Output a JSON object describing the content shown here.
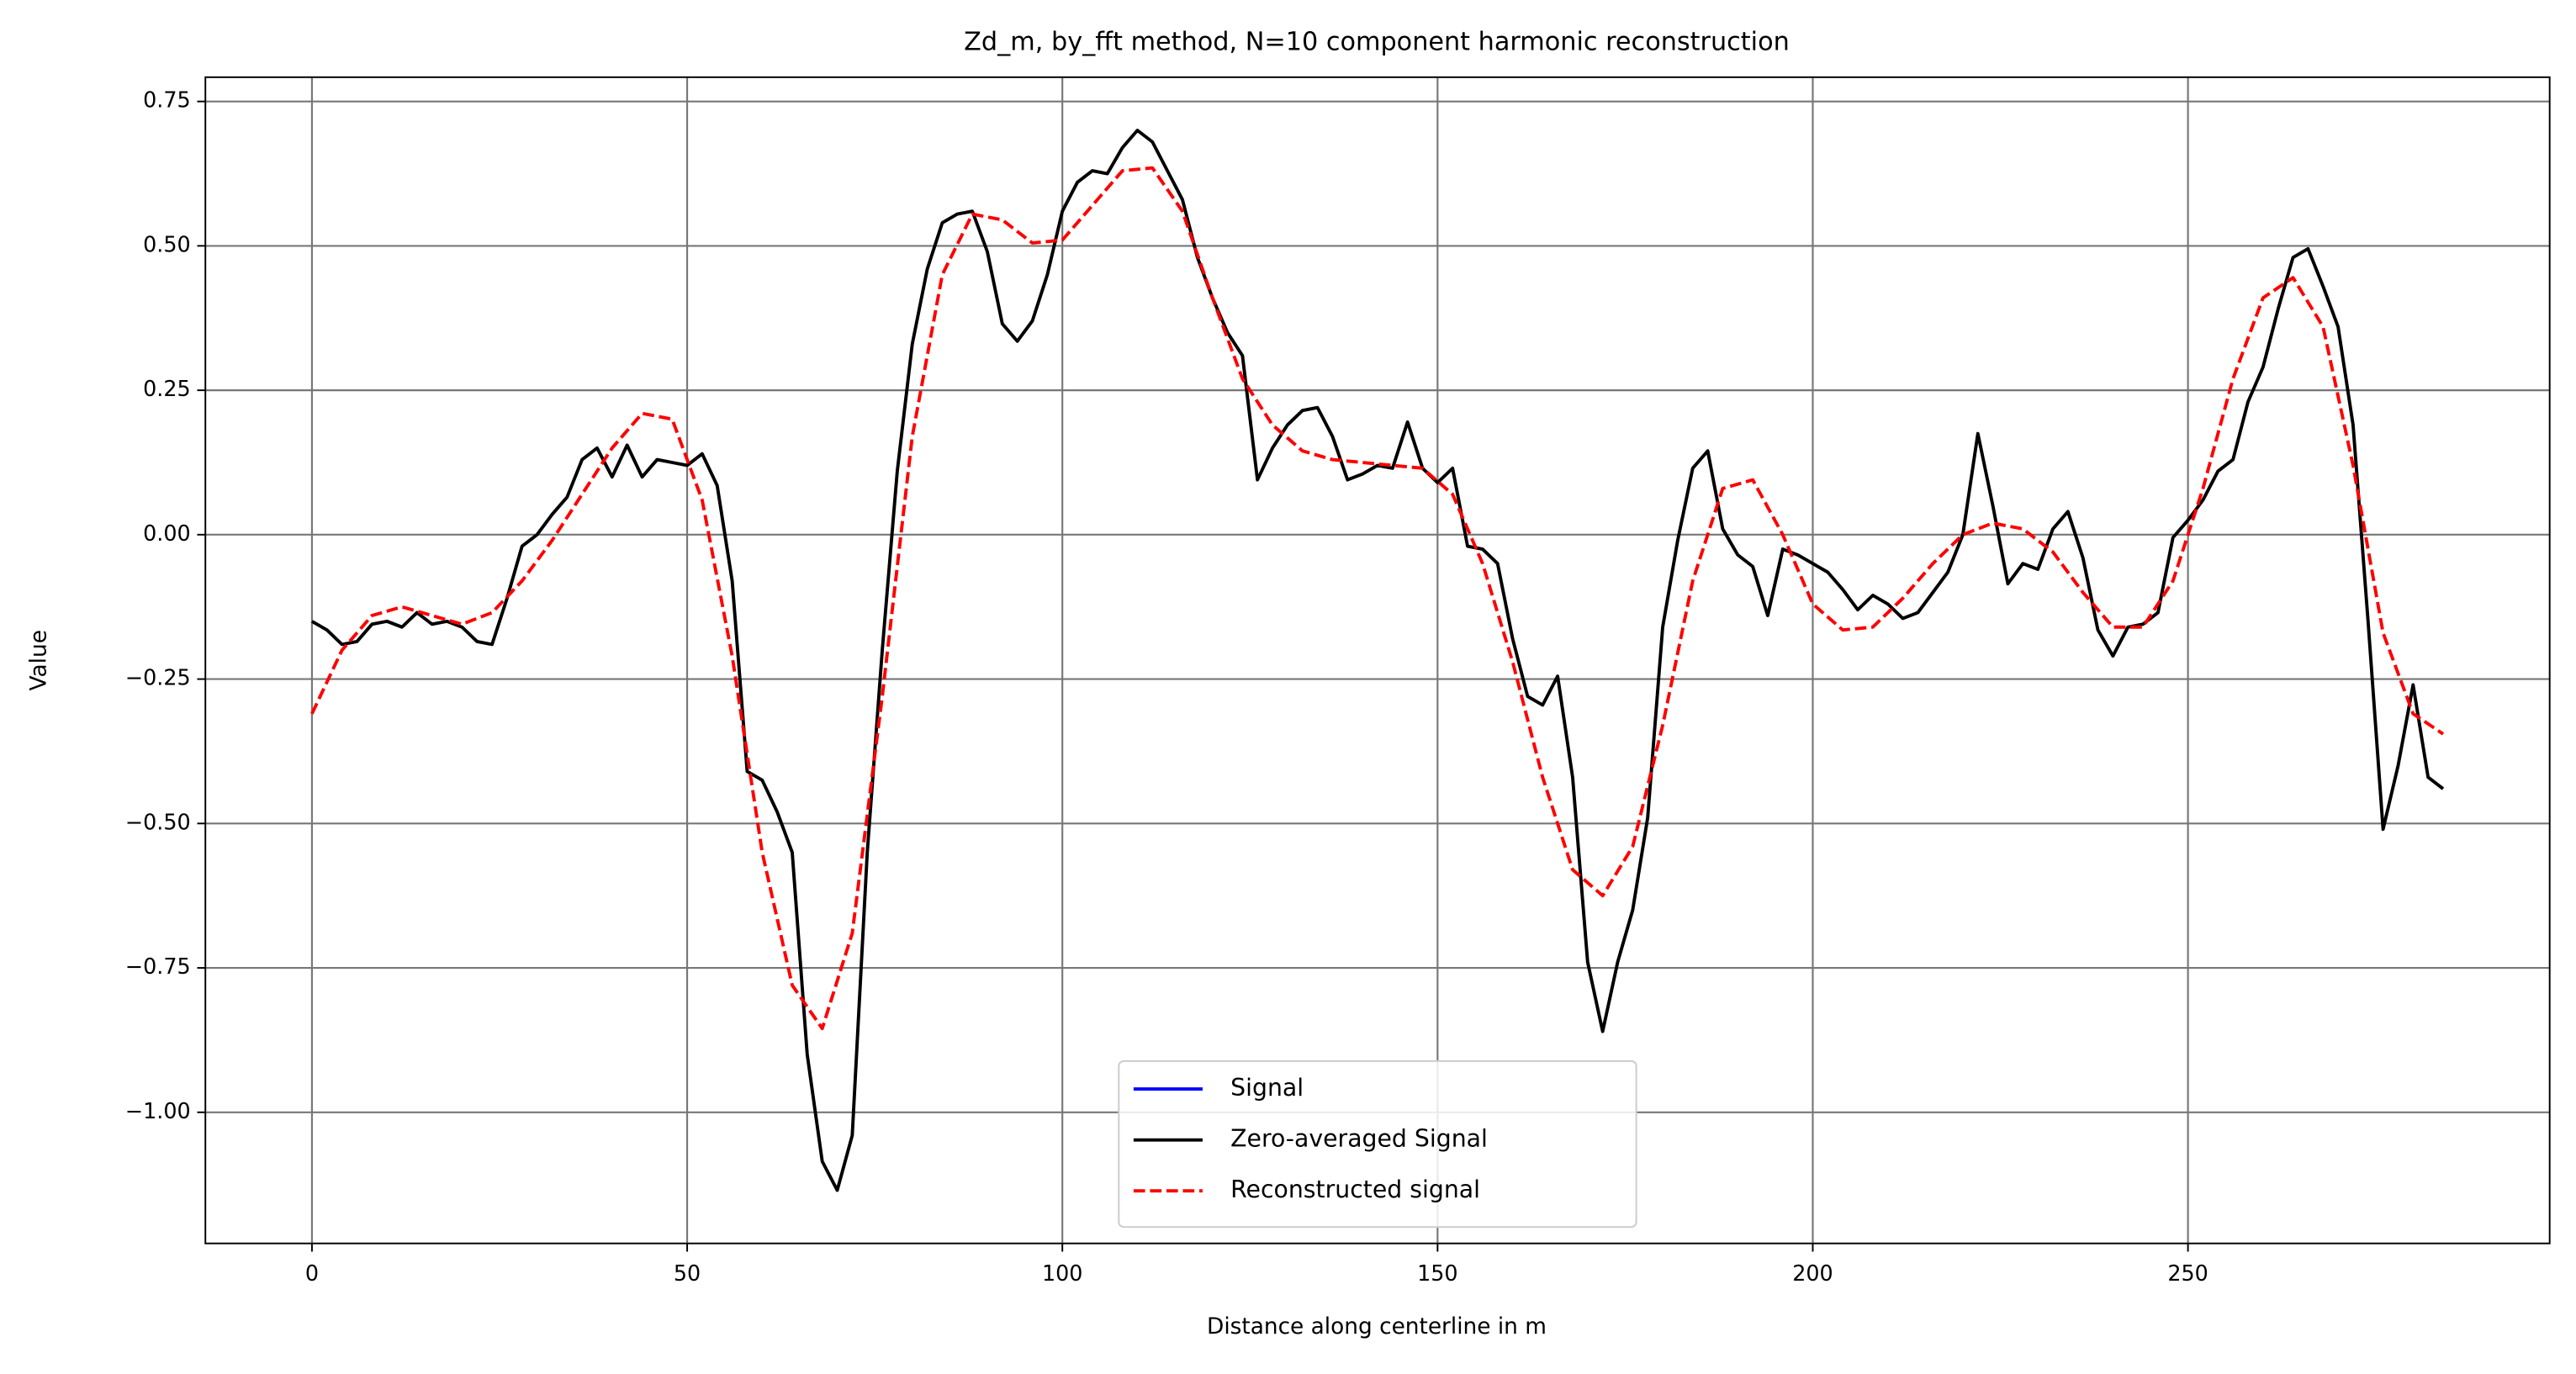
{
  "chart_data": {
    "type": "line",
    "title": "Zd_m, by_fft method, N=10 component harmonic reconstruction",
    "xlabel": "Distance along centerline in m",
    "ylabel": "Value",
    "xlim": [
      -14.2,
      298.2
    ],
    "ylim": [
      -1.227,
      0.792
    ],
    "xticks": [
      0,
      50,
      100,
      150,
      200,
      250
    ],
    "yticks": [
      {
        "value": 0.75,
        "label": "0.75"
      },
      {
        "value": 0.5,
        "label": "0.50"
      },
      {
        "value": 0.25,
        "label": "0.25"
      },
      {
        "value": 0,
        "label": "0.00"
      },
      {
        "value": -0.25,
        "label": "−0.25"
      },
      {
        "value": -0.5,
        "label": "−0.50"
      },
      {
        "value": -0.75,
        "label": "−0.75"
      },
      {
        "value": -1,
        "label": "−1.00"
      }
    ],
    "grid": true,
    "legend": "lower center",
    "series": [
      {
        "name": "Signal",
        "color": "#0000ff",
        "style": "solid"
      },
      {
        "name": "Zero-averaged Signal",
        "color": "#000000",
        "style": "solid",
        "x": [
          0,
          2,
          4,
          6,
          8,
          10,
          12,
          14,
          16,
          18,
          20,
          22,
          24,
          26,
          28,
          30,
          32,
          34,
          36,
          38,
          40,
          42,
          44,
          46,
          48,
          50,
          52,
          54,
          56,
          58,
          60,
          62,
          64,
          66,
          68,
          70,
          72,
          74,
          76,
          78,
          80,
          82,
          84,
          86,
          88,
          90,
          92,
          94,
          96,
          98,
          100,
          102,
          104,
          106,
          108,
          110,
          112,
          114,
          116,
          118,
          120,
          122,
          124,
          126,
          128,
          130,
          132,
          134,
          136,
          138,
          140,
          142,
          144,
          146,
          148,
          150,
          152,
          154,
          156,
          158,
          160,
          162,
          164,
          166,
          168,
          170,
          172,
          174,
          176,
          178,
          180,
          182,
          184,
          186,
          188,
          190,
          192,
          194,
          196,
          198,
          200,
          202,
          204,
          206,
          208,
          210,
          212,
          214,
          216,
          218,
          220,
          222,
          224,
          226,
          228,
          230,
          232,
          234,
          236,
          238,
          240,
          242,
          244,
          246,
          248,
          250,
          252,
          254,
          256,
          258,
          260,
          262,
          264,
          266,
          268,
          270,
          272,
          274,
          276,
          278,
          280,
          282,
          284
        ],
        "values": [
          -0.15,
          -0.165,
          -0.19,
          -0.185,
          -0.155,
          -0.15,
          -0.16,
          -0.135,
          -0.155,
          -0.15,
          -0.16,
          -0.185,
          -0.19,
          -0.11,
          -0.02,
          0.0,
          0.035,
          0.065,
          0.13,
          0.15,
          0.1,
          0.155,
          0.1,
          0.13,
          0.125,
          0.12,
          0.14,
          0.085,
          -0.08,
          -0.41,
          -0.425,
          -0.48,
          -0.55,
          -0.9,
          -1.085,
          -1.135,
          -1.04,
          -0.55,
          -0.2,
          0.11,
          0.33,
          0.46,
          0.54,
          0.555,
          0.56,
          0.49,
          0.365,
          0.335,
          0.37,
          0.45,
          0.56,
          0.61,
          0.63,
          0.625,
          0.67,
          0.7,
          0.68,
          0.63,
          0.58,
          0.48,
          0.41,
          0.35,
          0.31,
          0.095,
          0.15,
          0.19,
          0.215,
          0.22,
          0.17,
          0.095,
          0.105,
          0.12,
          0.115,
          0.195,
          0.115,
          0.09,
          0.115,
          -0.02,
          -0.025,
          -0.05,
          -0.18,
          -0.28,
          -0.295,
          -0.245,
          -0.42,
          -0.74,
          -0.86,
          -0.74,
          -0.65,
          -0.49,
          -0.16,
          -0.01,
          0.115,
          0.145,
          0.01,
          -0.035,
          -0.055,
          -0.14,
          -0.025,
          -0.035,
          -0.05,
          -0.065,
          -0.095,
          -0.13,
          -0.105,
          -0.12,
          -0.145,
          -0.135,
          -0.1,
          -0.065,
          0.0,
          0.175,
          0.05,
          -0.085,
          -0.05,
          -0.06,
          0.01,
          0.04,
          -0.04,
          -0.165,
          -0.21,
          -0.16,
          -0.155,
          -0.135,
          -0.005,
          0.025,
          0.06,
          0.11,
          0.13,
          0.23,
          0.29,
          0.39,
          0.48,
          0.495,
          0.43,
          0.36,
          0.19,
          -0.15,
          -0.51,
          -0.4,
          -0.26,
          -0.42,
          -0.44
        ]
      },
      {
        "name": "Reconstructed signal",
        "color": "#ff0000",
        "style": "dashed",
        "x": [
          0,
          4,
          8,
          12,
          16,
          20,
          24,
          28,
          32,
          36,
          40,
          44,
          48,
          52,
          56,
          60,
          64,
          68,
          72,
          76,
          80,
          84,
          88,
          92,
          96,
          100,
          104,
          108,
          112,
          116,
          120,
          124,
          128,
          132,
          136,
          140,
          144,
          148,
          152,
          156,
          160,
          164,
          168,
          172,
          176,
          180,
          184,
          188,
          192,
          196,
          200,
          204,
          208,
          212,
          216,
          220,
          224,
          228,
          232,
          236,
          240,
          244,
          248,
          252,
          256,
          260,
          264,
          268,
          272,
          276,
          280,
          284
        ],
        "values": [
          -0.31,
          -0.2,
          -0.14,
          -0.125,
          -0.14,
          -0.155,
          -0.135,
          -0.08,
          -0.01,
          0.07,
          0.15,
          0.21,
          0.2,
          0.06,
          -0.21,
          -0.55,
          -0.78,
          -0.855,
          -0.69,
          -0.28,
          0.17,
          0.45,
          0.555,
          0.545,
          0.505,
          0.51,
          0.57,
          0.63,
          0.635,
          0.56,
          0.41,
          0.27,
          0.19,
          0.145,
          0.13,
          0.125,
          0.12,
          0.115,
          0.07,
          -0.05,
          -0.22,
          -0.42,
          -0.58,
          -0.625,
          -0.54,
          -0.33,
          -0.08,
          0.08,
          0.095,
          0.0,
          -0.12,
          -0.165,
          -0.16,
          -0.11,
          -0.05,
          0.0,
          0.02,
          0.01,
          -0.03,
          -0.1,
          -0.16,
          -0.16,
          -0.08,
          0.08,
          0.27,
          0.41,
          0.445,
          0.36,
          0.12,
          -0.17,
          -0.31,
          -0.345
        ]
      }
    ]
  }
}
